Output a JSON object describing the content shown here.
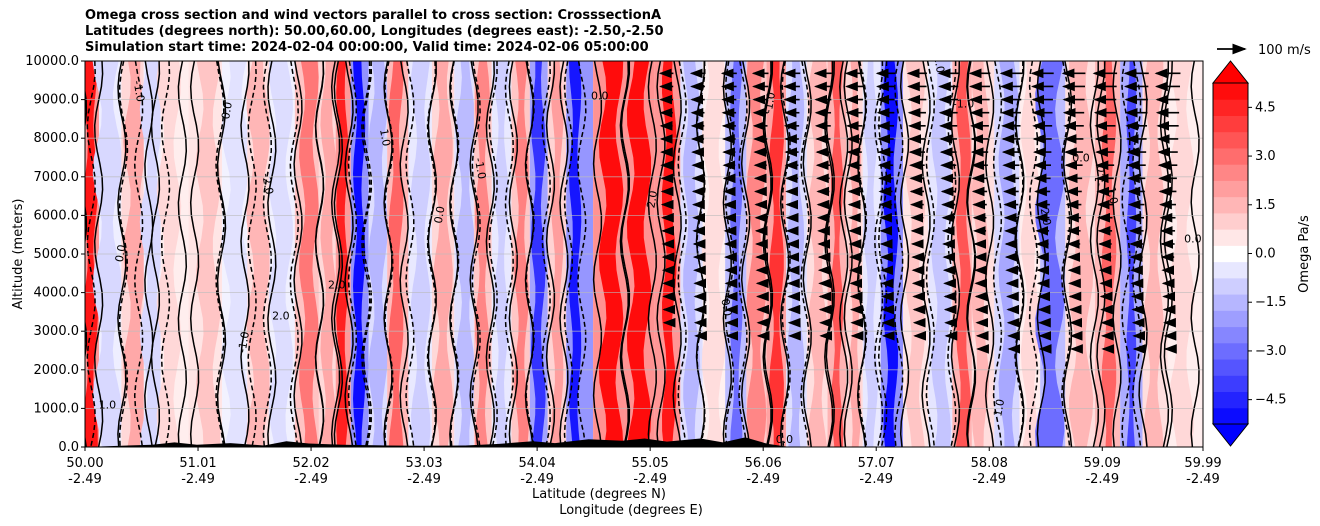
{
  "chart_data": {
    "type": "heatmap",
    "title_lines": [
      "Omega cross section and wind vectors parallel to cross section: CrosssectionA",
      "Latitudes (degrees north): 50.00,60.00, Longitudes (degrees east): -2.50,-2.50",
      "Simulation start time: 2024-02-04 00:00:00, Valid time: 2024-02-06 05:00:00"
    ],
    "ylabel": "Altitude (meters)",
    "xlabel_lines": [
      "Latitude (degrees N)",
      "Longitude (degrees E)"
    ],
    "ylim": [
      0,
      10000
    ],
    "y_ticks": [
      {
        "value": 0,
        "label": "0.0"
      },
      {
        "value": 1000,
        "label": "1000.0"
      },
      {
        "value": 2000,
        "label": "2000.0"
      },
      {
        "value": 3000,
        "label": "3000.0"
      },
      {
        "value": 4000,
        "label": "4000.0"
      },
      {
        "value": 5000,
        "label": "5000.0"
      },
      {
        "value": 6000,
        "label": "6000.0"
      },
      {
        "value": 7000,
        "label": "7000.0"
      },
      {
        "value": 8000,
        "label": "8000.0"
      },
      {
        "value": 9000,
        "label": "9000.0"
      },
      {
        "value": 10000,
        "label": "10000.0"
      }
    ],
    "xlim": [
      50.0,
      59.99
    ],
    "x_ticks": [
      {
        "lat": 50.0,
        "lat_label": "50.00",
        "lon_label": "-2.49"
      },
      {
        "lat": 51.01,
        "lat_label": "51.01",
        "lon_label": "-2.49"
      },
      {
        "lat": 52.02,
        "lat_label": "52.02",
        "lon_label": "-2.49"
      },
      {
        "lat": 53.03,
        "lat_label": "53.03",
        "lon_label": "-2.49"
      },
      {
        "lat": 54.04,
        "lat_label": "54.04",
        "lon_label": "-2.49"
      },
      {
        "lat": 55.05,
        "lat_label": "55.05",
        "lon_label": "-2.49"
      },
      {
        "lat": 56.06,
        "lat_label": "56.06",
        "lon_label": "-2.49"
      },
      {
        "lat": 57.07,
        "lat_label": "57.07",
        "lon_label": "-2.49"
      },
      {
        "lat": 58.08,
        "lat_label": "58.08",
        "lon_label": "-2.49"
      },
      {
        "lat": 59.09,
        "lat_label": "59.09",
        "lon_label": "-2.49"
      },
      {
        "lat": 59.99,
        "lat_label": "59.99",
        "lon_label": "-2.49"
      }
    ],
    "grid": true,
    "colorbar": {
      "label": "Omega Pa/s",
      "range": [
        -5.25,
        5.25
      ],
      "step": 0.5,
      "ticks": [
        {
          "value": 4.5,
          "label": "4.5"
        },
        {
          "value": 3.0,
          "label": "3.0"
        },
        {
          "value": 1.5,
          "label": "1.5"
        },
        {
          "value": 0.0,
          "label": "0.0"
        },
        {
          "value": -1.5,
          "label": "−1.5"
        },
        {
          "value": -3.0,
          "label": "−3.0"
        },
        {
          "value": -4.5,
          "label": "−4.5"
        }
      ],
      "extend": "both"
    },
    "quiver_key": {
      "label": "100 m/s",
      "speed": 100
    },
    "omega_bands": [
      {
        "lat": 50.05,
        "omega": 4.8,
        "width": 0.06
      },
      {
        "lat": 50.2,
        "omega": -0.8,
        "width": 0.12
      },
      {
        "lat": 50.45,
        "omega": 1.8,
        "width": 0.1
      },
      {
        "lat": 50.6,
        "omega": -0.8,
        "width": 0.1
      },
      {
        "lat": 50.75,
        "omega": 0.8,
        "width": 0.1
      },
      {
        "lat": 51.1,
        "omega": 1.2,
        "width": 0.1
      },
      {
        "lat": 51.35,
        "omega": -0.6,
        "width": 0.12
      },
      {
        "lat": 51.55,
        "omega": 1.5,
        "width": 0.1
      },
      {
        "lat": 51.75,
        "omega": -0.7,
        "width": 0.1
      },
      {
        "lat": 52.0,
        "omega": 2.8,
        "width": 0.08
      },
      {
        "lat": 52.18,
        "omega": 1.8,
        "width": 0.07
      },
      {
        "lat": 52.3,
        "omega": 4.6,
        "width": 0.05
      },
      {
        "lat": 52.45,
        "omega": -5.0,
        "width": 0.05
      },
      {
        "lat": 52.62,
        "omega": -1.5,
        "width": 0.08
      },
      {
        "lat": 52.78,
        "omega": 3.2,
        "width": 0.06
      },
      {
        "lat": 53.0,
        "omega": -1.0,
        "width": 0.08
      },
      {
        "lat": 53.2,
        "omega": 1.8,
        "width": 0.08
      },
      {
        "lat": 53.4,
        "omega": -1.4,
        "width": 0.08
      },
      {
        "lat": 53.55,
        "omega": 2.5,
        "width": 0.06
      },
      {
        "lat": 53.72,
        "omega": -1.0,
        "width": 0.06
      },
      {
        "lat": 53.9,
        "omega": 2.6,
        "width": 0.06
      },
      {
        "lat": 54.05,
        "omega": -4.2,
        "width": 0.06
      },
      {
        "lat": 54.22,
        "omega": 2.0,
        "width": 0.05
      },
      {
        "lat": 54.38,
        "omega": -4.8,
        "width": 0.05
      },
      {
        "lat": 54.7,
        "omega": 5.0,
        "width": 0.1
      },
      {
        "lat": 54.95,
        "omega": 5.0,
        "width": 0.1
      },
      {
        "lat": 55.22,
        "omega": 4.8,
        "width": 0.06
      },
      {
        "lat": 55.42,
        "omega": -1.5,
        "width": 0.07
      },
      {
        "lat": 55.62,
        "omega": 0.7,
        "width": 0.1
      },
      {
        "lat": 55.82,
        "omega": -3.0,
        "width": 0.05
      },
      {
        "lat": 56.0,
        "omega": 2.5,
        "width": 0.08
      },
      {
        "lat": 56.18,
        "omega": 4.2,
        "width": 0.06
      },
      {
        "lat": 56.35,
        "omega": -1.5,
        "width": 0.07
      },
      {
        "lat": 56.55,
        "omega": 1.5,
        "width": 0.08
      },
      {
        "lat": 56.72,
        "omega": 3.5,
        "width": 0.05
      },
      {
        "lat": 56.88,
        "omega": 1.8,
        "width": 0.05
      },
      {
        "lat": 57.02,
        "omega": -1.0,
        "width": 0.06
      },
      {
        "lat": 57.2,
        "omega": -5.0,
        "width": 0.06
      },
      {
        "lat": 57.42,
        "omega": 1.2,
        "width": 0.08
      },
      {
        "lat": 57.65,
        "omega": -1.2,
        "width": 0.08
      },
      {
        "lat": 57.85,
        "omega": 3.5,
        "width": 0.06
      },
      {
        "lat": 58.0,
        "omega": 1.5,
        "width": 0.07
      },
      {
        "lat": 58.25,
        "omega": -1.8,
        "width": 0.08
      },
      {
        "lat": 58.45,
        "omega": 0.8,
        "width": 0.08
      },
      {
        "lat": 58.62,
        "omega": -3.0,
        "width": 0.12
      },
      {
        "lat": 58.9,
        "omega": 1.5,
        "width": 0.1
      },
      {
        "lat": 59.15,
        "omega": 3.2,
        "width": 0.06
      },
      {
        "lat": 59.35,
        "omega": -3.8,
        "width": 0.04
      },
      {
        "lat": 59.55,
        "omega": 1.5,
        "width": 0.08
      },
      {
        "lat": 59.8,
        "omega": 0.8,
        "width": 0.1
      }
    ],
    "terrain": [
      {
        "lat": 50.0,
        "height": 0
      },
      {
        "lat": 50.6,
        "height": 60
      },
      {
        "lat": 50.8,
        "height": 120
      },
      {
        "lat": 51.0,
        "height": 60
      },
      {
        "lat": 51.3,
        "height": 100
      },
      {
        "lat": 51.6,
        "height": 40
      },
      {
        "lat": 51.8,
        "height": 150
      },
      {
        "lat": 52.0,
        "height": 90
      },
      {
        "lat": 52.3,
        "height": 60
      },
      {
        "lat": 52.7,
        "height": 40
      },
      {
        "lat": 53.0,
        "height": 30
      },
      {
        "lat": 53.4,
        "height": 40
      },
      {
        "lat": 53.7,
        "height": 80
      },
      {
        "lat": 54.0,
        "height": 150
      },
      {
        "lat": 54.2,
        "height": 100
      },
      {
        "lat": 54.5,
        "height": 200
      },
      {
        "lat": 54.8,
        "height": 160
      },
      {
        "lat": 55.0,
        "height": 220
      },
      {
        "lat": 55.2,
        "height": 140
      },
      {
        "lat": 55.5,
        "height": 220
      },
      {
        "lat": 55.7,
        "height": 120
      },
      {
        "lat": 55.9,
        "height": 250
      },
      {
        "lat": 56.1,
        "height": 80
      },
      {
        "lat": 56.3,
        "height": 0
      },
      {
        "lat": 59.99,
        "height": 0
      }
    ],
    "contour_labels": [
      {
        "text": "0.0",
        "lat": 50.35,
        "alt": 5000
      },
      {
        "text": "-1.0",
        "lat": 50.45,
        "alt": 9200
      },
      {
        "text": "1.0",
        "lat": 50.2,
        "alt": 1000
      },
      {
        "text": "0.0",
        "lat": 51.3,
        "alt": 8700
      },
      {
        "text": "-2.0",
        "lat": 51.6,
        "alt": 6800
      },
      {
        "text": "2.0",
        "lat": 51.75,
        "alt": 3300
      },
      {
        "text": "-1.0",
        "lat": 51.45,
        "alt": 2700
      },
      {
        "text": "1.0",
        "lat": 52.65,
        "alt": 8000
      },
      {
        "text": "2.0",
        "lat": 52.25,
        "alt": 4100
      },
      {
        "text": "0.0",
        "lat": 53.2,
        "alt": 6000
      },
      {
        "text": "-1.0",
        "lat": 53.5,
        "alt": 7200
      },
      {
        "text": "0.0",
        "lat": 54.6,
        "alt": 9000
      },
      {
        "text": "2.0",
        "lat": 55.1,
        "alt": 6400
      },
      {
        "text": "0.0",
        "lat": 55.7,
        "alt": 3600
      },
      {
        "text": "0.0",
        "lat": 56.25,
        "alt": 100
      },
      {
        "text": "-1.0",
        "lat": 56.15,
        "alt": 8900
      },
      {
        "text": "1.0",
        "lat": 57.6,
        "alt": 9900
      },
      {
        "text": "-1.0",
        "lat": 57.85,
        "alt": 8800
      },
      {
        "text": "1.0",
        "lat": 58.2,
        "alt": 1000
      },
      {
        "text": "-2.0",
        "lat": 58.55,
        "alt": 6000
      },
      {
        "text": "0.0",
        "lat": 58.9,
        "alt": 7400
      },
      {
        "text": "-1.0",
        "lat": 59.1,
        "alt": 7000
      },
      {
        "text": "1.0",
        "lat": 59.15,
        "alt": 6500
      },
      {
        "text": "0.0",
        "lat": 59.9,
        "alt": 5300
      }
    ]
  }
}
